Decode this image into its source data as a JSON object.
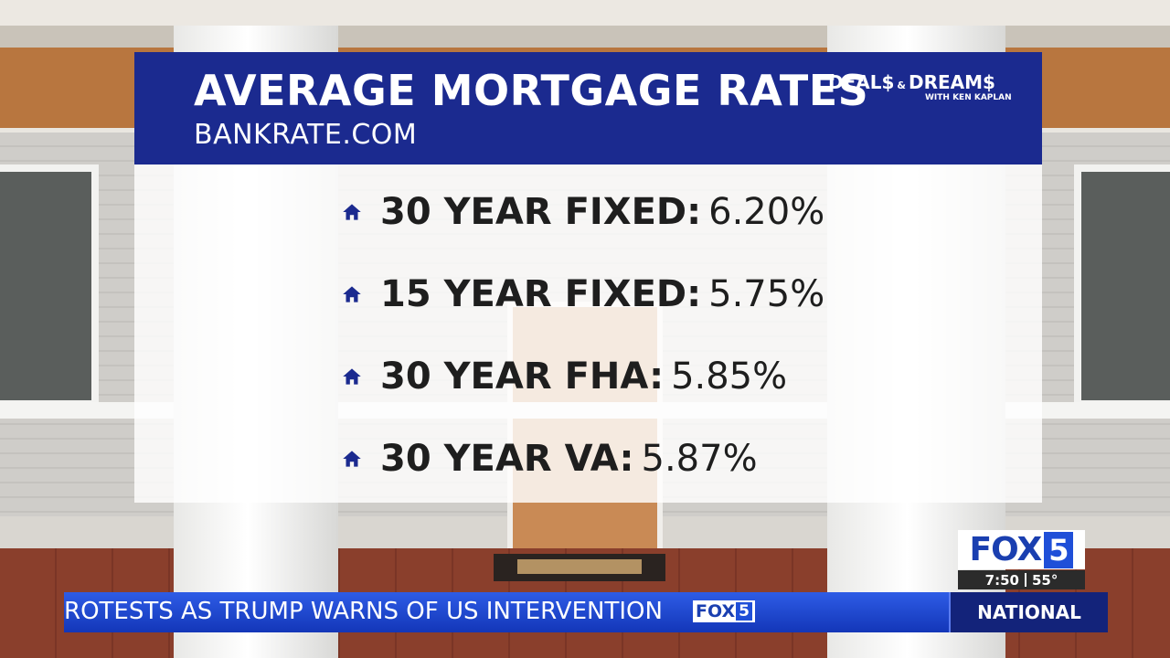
{
  "header": {
    "title": "AVERAGE MORTGAGE RATES",
    "subtitle": "BANKRATE.COM"
  },
  "logo": {
    "deals": "DEAL$",
    "and": "&",
    "dreams": "DREAM$",
    "host": "WITH KEN KAPLAN"
  },
  "rates": [
    {
      "label": "30 YEAR FIXED:",
      "value": "6.20%"
    },
    {
      "label": "15 YEAR FIXED:",
      "value": "5.75%"
    },
    {
      "label": "30 YEAR FHA:",
      "value": "5.85%"
    },
    {
      "label": "30 YEAR VA:",
      "value": "5.87%"
    }
  ],
  "bug": {
    "station": "FOX",
    "number": "5",
    "time": "7:50",
    "temperature": "55°"
  },
  "ticker": {
    "headline": "ROTESTS AS TRUMP WARNS OF US INTERVENTION",
    "logo_station": "FOX",
    "logo_number": "5",
    "section": "NATIONAL"
  }
}
